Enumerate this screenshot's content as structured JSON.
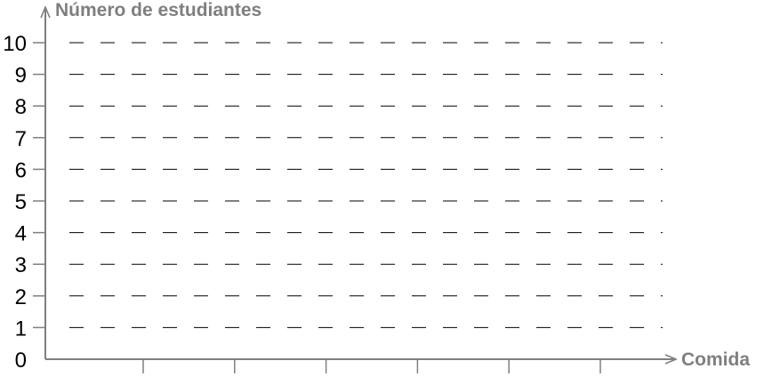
{
  "chart_data": {
    "type": "bar",
    "title": "",
    "ylabel": "Número de estudiantes",
    "xlabel": "Comida",
    "ylim": [
      0,
      10
    ],
    "yticks": [
      "0",
      "1",
      "2",
      "3",
      "4",
      "5",
      "6",
      "7",
      "8",
      "9",
      "10"
    ],
    "categories": [
      "",
      "",
      "",
      "",
      "",
      ""
    ],
    "values": [
      null,
      null,
      null,
      null,
      null,
      null
    ],
    "grid": true,
    "grid_style": "dashed",
    "legend": "none"
  },
  "colors": {
    "axis": "#7f7f7f",
    "grid": "#000000",
    "axis_title": "#7f7f7f",
    "tick_text": "#000000"
  }
}
